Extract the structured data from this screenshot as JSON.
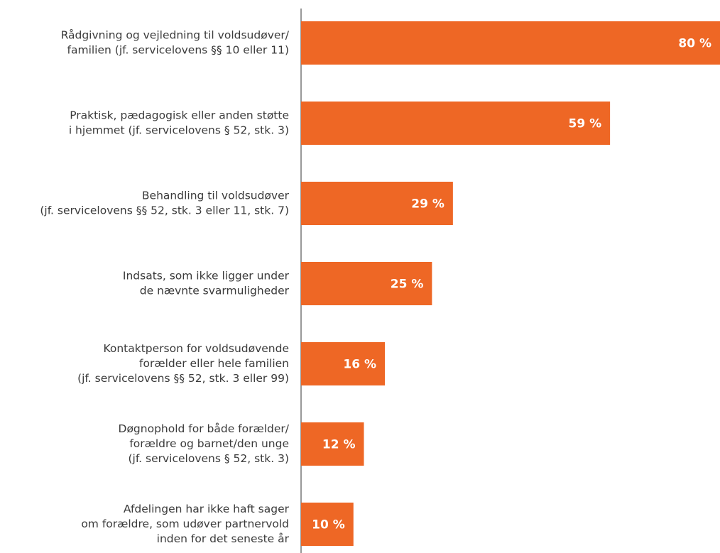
{
  "chart_data": {
    "type": "bar",
    "orientation": "horizontal",
    "color": "#ee6725",
    "categories": [
      [
        "Rådgivning og vejledning til voldsudøver/",
        "familien (jf. servicelovens §§ 10 eller 11)"
      ],
      [
        "Praktisk, pædagogisk eller anden støtte",
        "i hjemmet (jf. servicelovens § 52, stk. 3)"
      ],
      [
        "Behandling til voldsudøver",
        "(jf. servicelovens §§ 52, stk. 3 eller 11, stk. 7)"
      ],
      [
        "Indsats, som ikke ligger under",
        "de nævnte svarmuligheder"
      ],
      [
        "Kontaktperson for voldsudøvende",
        "forælder eller hele familien",
        "(jf. servicelovens §§ 52, stk. 3 eller 99)"
      ],
      [
        "Døgnophold for både forælder/",
        "forældre og barnet/den unge",
        "(jf. servicelovens § 52, stk. 3)"
      ],
      [
        "Afdelingen har ikke haft sager",
        "om forældre, som udøver partnervold",
        "inden for det seneste år"
      ]
    ],
    "values": [
      80,
      59,
      29,
      25,
      16,
      12,
      10
    ],
    "value_labels": [
      "80 %",
      "59 %",
      "29 %",
      "25 %",
      "16 %",
      "12 %",
      "10 %"
    ]
  }
}
